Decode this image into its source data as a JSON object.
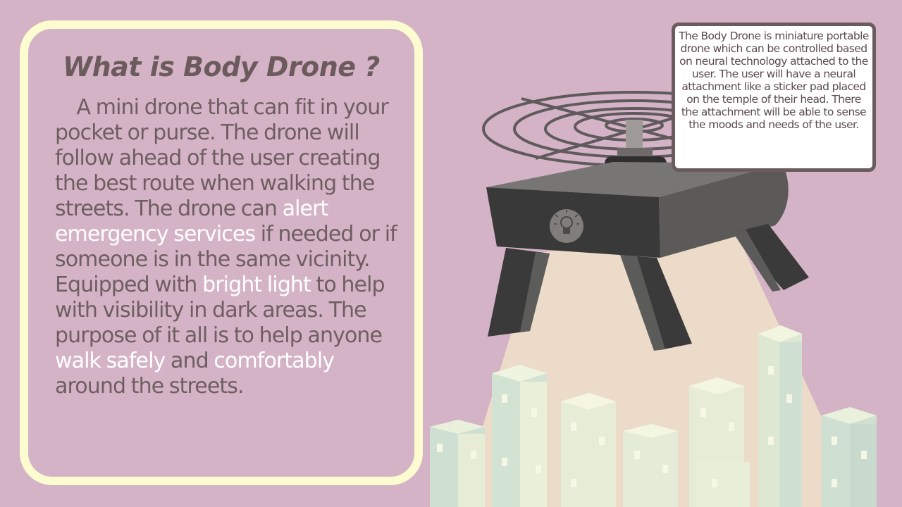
{
  "slide": {
    "title": "What is Body Drone ?",
    "body": {
      "t1": "    A mini drone that can fit in your pocket or purse. The drone will follow ahead of the user creating the best route when walking the streets. The drone can ",
      "h1": "alert emergency services",
      "t2": " if needed or if someone is in the same vicinity. Equipped with ",
      "h2": "bright light",
      "t3": " to help with visibility in dark areas. The purpose of it all is to help anyone ",
      "h3": "walk safely",
      "t4": " and ",
      "h4": "comfortably",
      "t5": " around the streets."
    },
    "callout": "The Body Drone is miniature portable drone which can be controlled based on neural technology attached to the user. The user will have a neural attachment like a sticker pad placed on the temple of their head. There the attachment will be able to sense the moods and needs of the user.",
    "colors": {
      "background": "#d5b3c6",
      "card_border": "#fdfcd0",
      "title_text": "#6b5b5d",
      "highlight_text": "#ffffff",
      "drone_body": "#3a3a3a",
      "light_beam": "#f2e9c6",
      "buildings": "#eef2d6"
    },
    "icons": [
      "lightbulb-icon",
      "drone-illustration",
      "city-buildings-illustration"
    ]
  }
}
